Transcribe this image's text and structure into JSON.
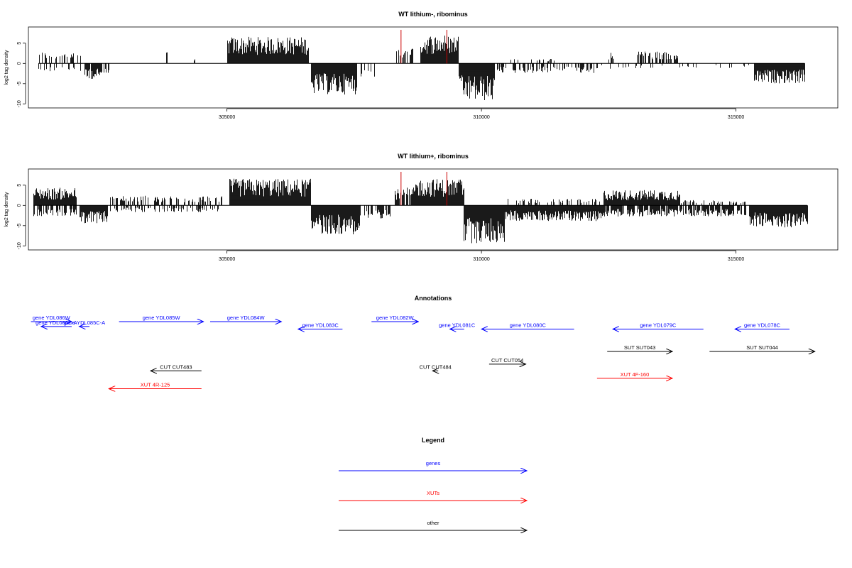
{
  "chart_data": [
    {
      "type": "bar",
      "title": "WT lithium-, ribominus",
      "ylabel": "log2 tag density",
      "xlim": [
        301100,
        317000
      ],
      "ylim": [
        -11,
        9
      ],
      "yticks": [
        -10,
        -5,
        0,
        5
      ],
      "xticks": [
        305000,
        310000,
        315000
      ],
      "bar_color": "#000000",
      "marker_color": "#cc0000",
      "markers": [
        308420,
        309320
      ],
      "blocks": [
        {
          "strand": "+",
          "from": 301300,
          "to": 302150,
          "level": 2.6,
          "density": 0.35
        },
        {
          "strand": "-",
          "from": 301300,
          "to": 302150,
          "level": -1.8,
          "density": 0.3
        },
        {
          "strand": "-",
          "from": 302200,
          "to": 302700,
          "level": -3.5,
          "density": 0.8
        },
        {
          "strand": "+",
          "from": 303800,
          "to": 303820,
          "level": 2.5,
          "density": 1
        },
        {
          "strand": "+",
          "from": 304350,
          "to": 304370,
          "level": 1.0,
          "density": 1
        },
        {
          "strand": "+",
          "from": 305000,
          "to": 306600,
          "level": 6.0,
          "density": 1
        },
        {
          "strand": "-",
          "from": 306650,
          "to": 307550,
          "level": -7.0,
          "density": 1
        },
        {
          "strand": "-",
          "from": 307560,
          "to": 307950,
          "level": -3.0,
          "density": 0.4
        },
        {
          "strand": "+",
          "from": 308320,
          "to": 308720,
          "level": 3.5,
          "density": 0.5
        },
        {
          "strand": "+",
          "from": 308800,
          "to": 309550,
          "level": 6.5,
          "density": 1
        },
        {
          "strand": "-",
          "from": 309550,
          "to": 310250,
          "level": -8.5,
          "density": 1
        },
        {
          "strand": "-",
          "from": 310300,
          "to": 312200,
          "level": -2.2,
          "density": 0.5
        },
        {
          "strand": "+",
          "from": 310400,
          "to": 311500,
          "level": 1.3,
          "density": 0.15
        },
        {
          "strand": "+",
          "from": 312500,
          "to": 312600,
          "level": 2.5,
          "density": 0.5
        },
        {
          "strand": "+",
          "from": 313050,
          "to": 313850,
          "level": 2.8,
          "density": 0.6
        },
        {
          "strand": "-",
          "from": 312200,
          "to": 315300,
          "level": -1.2,
          "density": 0.15
        },
        {
          "strand": "-",
          "from": 315350,
          "to": 316350,
          "level": -4.5,
          "density": 1
        }
      ]
    },
    {
      "type": "bar",
      "title": "WT lithium+, ribominus",
      "ylabel": "log2 tag density",
      "xlim": [
        301100,
        317000
      ],
      "ylim": [
        -11,
        9
      ],
      "yticks": [
        -10,
        -5,
        0,
        5
      ],
      "xticks": [
        305000,
        310000,
        315000
      ],
      "bar_color": "#000000",
      "marker_color": "#cc0000",
      "markers": [
        308420,
        309320
      ],
      "blocks": [
        {
          "strand": "+",
          "from": 301200,
          "to": 302050,
          "level": 4.0,
          "density": 1
        },
        {
          "strand": "-",
          "from": 301200,
          "to": 302050,
          "level": -2.5,
          "density": 0.6
        },
        {
          "strand": "-",
          "from": 302100,
          "to": 302650,
          "level": -4.0,
          "density": 1
        },
        {
          "strand": "+",
          "from": 302650,
          "to": 304900,
          "level": 2.2,
          "density": 0.4
        },
        {
          "strand": "-",
          "from": 302650,
          "to": 304900,
          "level": -1.5,
          "density": 0.4
        },
        {
          "strand": "+",
          "from": 305050,
          "to": 306650,
          "level": 6.0,
          "density": 1
        },
        {
          "strand": "-",
          "from": 306650,
          "to": 307600,
          "level": -6.5,
          "density": 1
        },
        {
          "strand": "-",
          "from": 307600,
          "to": 308200,
          "level": -3.0,
          "density": 0.5
        },
        {
          "strand": "+",
          "from": 308300,
          "to": 308700,
          "level": 4.0,
          "density": 0.8
        },
        {
          "strand": "+",
          "from": 308700,
          "to": 309650,
          "level": 6.0,
          "density": 1
        },
        {
          "strand": "-",
          "from": 309650,
          "to": 310450,
          "level": -8.5,
          "density": 1
        },
        {
          "strand": "-",
          "from": 310450,
          "to": 312400,
          "level": -3.5,
          "density": 1
        },
        {
          "strand": "+",
          "from": 310500,
          "to": 312400,
          "level": 1.5,
          "density": 0.3
        },
        {
          "strand": "+",
          "from": 312400,
          "to": 313900,
          "level": 3.5,
          "density": 1
        },
        {
          "strand": "-",
          "from": 312400,
          "to": 315200,
          "level": -2.5,
          "density": 0.8
        },
        {
          "strand": "+",
          "from": 313900,
          "to": 315200,
          "level": 1.2,
          "density": 0.3
        },
        {
          "strand": "-",
          "from": 315250,
          "to": 316400,
          "level": -5.0,
          "density": 1
        }
      ]
    }
  ],
  "annotations": {
    "title": "Annotations",
    "xlim": [
      301100,
      317000
    ],
    "items": [
      {
        "label": "gene YDL086W",
        "start": 301150,
        "end": 301950,
        "strand": "+",
        "row": 0,
        "type": "genes"
      },
      {
        "label": "gene YDL086C-A",
        "start": 301350,
        "end": 301950,
        "strand": "-",
        "row": 0.65,
        "type": "genes"
      },
      {
        "label": "gene YDL085C-A",
        "start": 302100,
        "end": 302300,
        "strand": "-",
        "row": 0.65,
        "type": "genes"
      },
      {
        "label": "gene YDL085W",
        "start": 302880,
        "end": 304540,
        "strand": "+",
        "row": 0,
        "type": "genes"
      },
      {
        "label": "gene YDL084W",
        "start": 304670,
        "end": 306070,
        "strand": "+",
        "row": 0,
        "type": "genes"
      },
      {
        "label": "gene YDL083C",
        "start": 306400,
        "end": 307270,
        "strand": "-",
        "row": 1,
        "type": "genes"
      },
      {
        "label": "gene YDL082W",
        "start": 307840,
        "end": 308760,
        "strand": "+",
        "row": 0,
        "type": "genes"
      },
      {
        "label": "gene YDL081C",
        "start": 309380,
        "end": 309660,
        "strand": "-",
        "row": 1,
        "type": "genes"
      },
      {
        "label": "gene YDL080C",
        "start": 310000,
        "end": 311820,
        "strand": "-",
        "row": 1,
        "type": "genes"
      },
      {
        "label": "gene YDL079C",
        "start": 312580,
        "end": 314360,
        "strand": "-",
        "row": 1,
        "type": "genes"
      },
      {
        "label": "gene YDL078C",
        "start": 314980,
        "end": 316050,
        "strand": "-",
        "row": 1,
        "type": "genes"
      },
      {
        "label": "SUT SUT043",
        "start": 312470,
        "end": 313750,
        "strand": "+",
        "row": 4,
        "type": "other"
      },
      {
        "label": "SUT SUT044",
        "start": 314480,
        "end": 316550,
        "strand": "+",
        "row": 4,
        "type": "other"
      },
      {
        "label": "CUT CUT054",
        "start": 310150,
        "end": 310870,
        "strand": "+",
        "row": 5.7,
        "type": "other"
      },
      {
        "label": "CUT CUT483",
        "start": 303500,
        "end": 304500,
        "strand": "-",
        "row": 6.6,
        "type": "other"
      },
      {
        "label": "CUT CUT484",
        "start": 309040,
        "end": 309150,
        "strand": "-",
        "row": 6.6,
        "type": "other"
      },
      {
        "label": "XUT 4F-160",
        "start": 312270,
        "end": 313750,
        "strand": "+",
        "row": 7.6,
        "type": "XUTs"
      },
      {
        "label": "XUT 4R-125",
        "start": 302680,
        "end": 304500,
        "strand": "-",
        "row": 9,
        "type": "XUTs"
      }
    ]
  },
  "legend": {
    "title": "Legend",
    "entries": [
      {
        "label": "genes",
        "color": "#0000ff"
      },
      {
        "label": "XUTs",
        "color": "#ff0000"
      },
      {
        "label": "other",
        "color": "#000000"
      }
    ]
  },
  "colors": {
    "genes": "#0000ff",
    "XUTs": "#ff0000",
    "other": "#000000"
  }
}
